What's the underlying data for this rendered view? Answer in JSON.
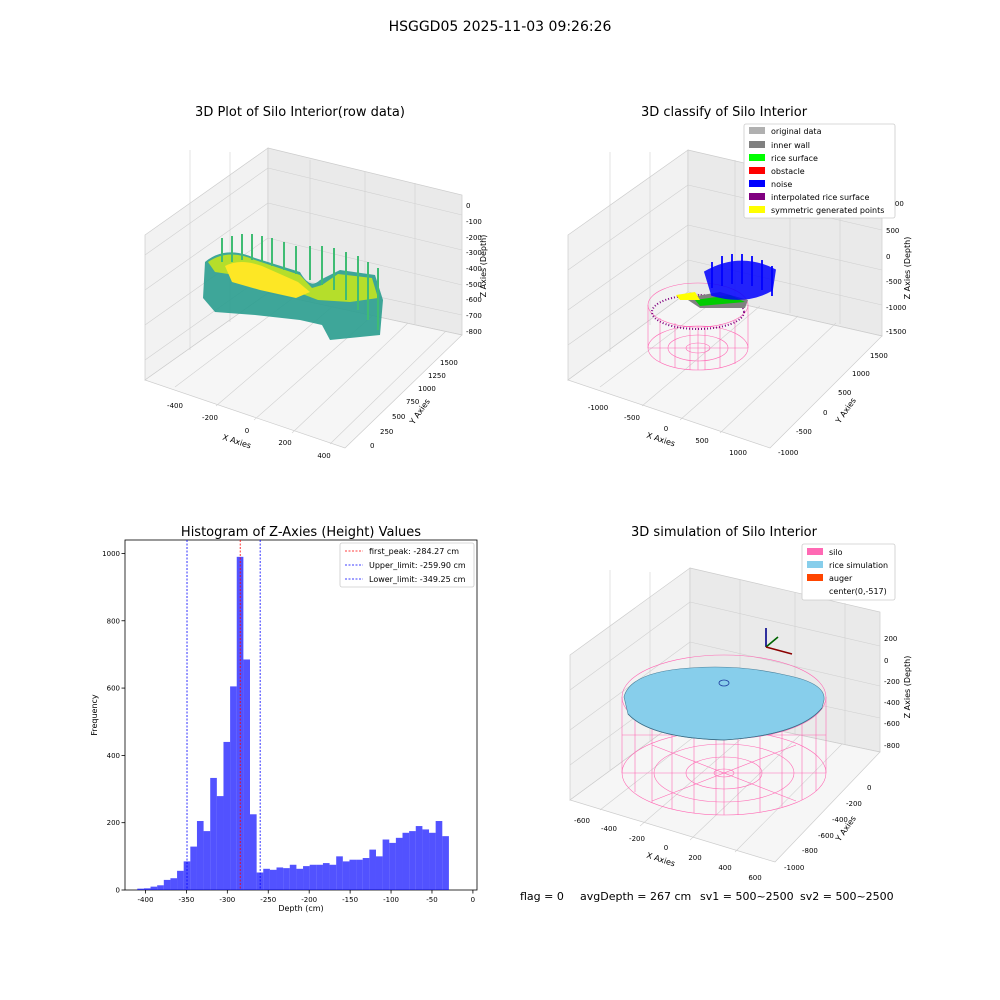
{
  "suptitle": "HSGGD05 2025-11-03 09:26:26",
  "footer": {
    "flag": "flag = 0",
    "avg": "avgDepth = 267 cm",
    "sv1": "sv1 = 500~2500",
    "sv2": "sv2 = 500~2500"
  },
  "panels": {
    "raw": {
      "title": "3D Plot of Silo Interior(row data)",
      "xlabel": "X Axies",
      "ylabel": "Y Axies",
      "zlabel": "Z Axies (Depth)",
      "xticks": [
        "-400",
        "-200",
        "0",
        "200",
        "400"
      ],
      "yticks": [
        "0",
        "250",
        "500",
        "750",
        "1000",
        "1250",
        "1500"
      ],
      "zticks": [
        "0",
        "-100",
        "-200",
        "-300",
        "-400",
        "-500",
        "-600",
        "-700",
        "-800"
      ]
    },
    "classify": {
      "title": "3D classify of Silo Interior",
      "xlabel": "X Axies",
      "ylabel": "Y Axies",
      "zlabel": "Z Axies (Depth)",
      "xticks": [
        "-1000",
        "-500",
        "0",
        "500",
        "1000"
      ],
      "yticks": [
        "-1000",
        "-500",
        "0",
        "500",
        "1000",
        "1500"
      ],
      "zticks": [
        "1000",
        "500",
        "0",
        "-500",
        "-1000",
        "-1500"
      ],
      "legend": [
        {
          "label": "original data",
          "color": "#b0b0b0"
        },
        {
          "label": "inner wall",
          "color": "#808080"
        },
        {
          "label": "rice surface",
          "color": "#00ff00"
        },
        {
          "label": "obstacle",
          "color": "#ff0000"
        },
        {
          "label": "noise",
          "color": "#0000ff"
        },
        {
          "label": "interpolated rice surface",
          "color": "#800080"
        },
        {
          "label": "symmetric generated points",
          "color": "#ffff00"
        }
      ]
    },
    "sim": {
      "title": "3D simulation of Silo Interior",
      "xlabel": "X Axies",
      "ylabel": "Y Axies",
      "zlabel": "Z Axies (Depth)",
      "xticks": [
        "-600",
        "-400",
        "-200",
        "0",
        "200",
        "400",
        "600"
      ],
      "yticks": [
        "0",
        "-200",
        "-400",
        "-600",
        "-800",
        "-1000"
      ],
      "zticks": [
        "200",
        "0",
        "-200",
        "-400",
        "-600",
        "-800"
      ],
      "legend": [
        {
          "label": "silo",
          "color": "#ff69b4"
        },
        {
          "label": "rice simulation",
          "color": "#87ceeb"
        },
        {
          "label": "auger",
          "color": "#ff4500"
        },
        {
          "label": "center(0,-517)",
          "color": ""
        }
      ]
    }
  },
  "chart_data": {
    "type": "bar",
    "title": "Histogram of Z-Axies (Height) Values",
    "xlabel": "Depth (cm)",
    "ylabel": "Frequency",
    "xlim": [
      -425,
      5
    ],
    "ylim": [
      0,
      1040
    ],
    "xticks": [
      -400,
      -350,
      -300,
      -250,
      -200,
      -150,
      -100,
      -50,
      0
    ],
    "yticks": [
      0,
      200,
      400,
      600,
      800,
      1000
    ],
    "bar_color": "#0000ff",
    "bin_edges": [
      -410.0,
      -401.9,
      -393.8,
      -385.7,
      -377.6,
      -369.5,
      -361.4,
      -353.3,
      -345.2,
      -337.1,
      -329.0,
      -320.9,
      -312.8,
      -304.7,
      -296.6,
      -288.5,
      -280.4,
      -272.3,
      -264.2,
      -256.1,
      -248.0,
      -239.9,
      -231.8,
      -223.7,
      -215.6,
      -207.5,
      -199.4,
      -191.3,
      -183.2,
      -175.1,
      -167.0,
      -158.9,
      -150.8,
      -142.7,
      -134.6,
      -126.5,
      -118.4,
      -110.3,
      -102.2,
      -94.1,
      -86.0,
      -77.9,
      -69.8,
      -61.7,
      -53.6,
      -45.5,
      -37.4,
      -29.3,
      -21.2,
      -13.1,
      -5.0
    ],
    "counts": [
      4,
      5,
      10,
      14,
      30,
      35,
      57,
      85,
      129,
      205,
      175,
      333,
      279,
      440,
      605,
      990,
      685,
      225,
      52,
      63,
      60,
      67,
      65,
      75,
      63,
      71,
      75,
      75,
      80,
      75,
      100,
      85,
      90,
      90,
      95,
      120,
      100,
      150,
      140,
      155,
      170,
      175,
      190,
      180,
      170,
      205,
      160,
      0,
      0,
      0
    ],
    "lines": [
      {
        "name": "first_peak: -284.27 cm",
        "x": -284.27,
        "color": "#ff0000"
      },
      {
        "name": "Upper_limit: -259.90 cm",
        "x": -259.9,
        "color": "#0000ff"
      },
      {
        "name": "Lower_limit: -349.25 cm",
        "x": -349.25,
        "color": "#0000ff"
      }
    ]
  }
}
